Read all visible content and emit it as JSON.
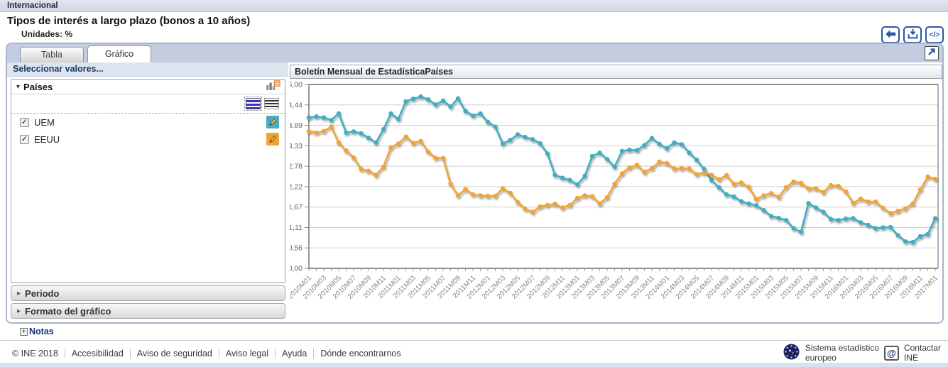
{
  "header": {
    "breadcrumb": "Internacional",
    "title": "Tipos de interés a largo plazo (bonos a 10 años)",
    "units_label": "Unidades: %"
  },
  "toolbar": {
    "code_glyph": "</>"
  },
  "tabs": [
    {
      "label": "Tabla",
      "active": false
    },
    {
      "label": "Gráfico",
      "active": true
    }
  ],
  "sidebar": {
    "header": "Seleccionar valores...",
    "section_paises": {
      "label": "Países",
      "caret": "▾"
    },
    "items": [
      {
        "label": "UEM",
        "checked": true,
        "check_glyph": "✓",
        "color": "#41aec2"
      },
      {
        "label": "EEUU",
        "checked": true,
        "check_glyph": "✓",
        "color": "#f0a437"
      }
    ],
    "collapsed_sections": [
      {
        "label": "Periodo",
        "caret": "▸"
      },
      {
        "label": "Formato del gráfico",
        "caret": "▸"
      }
    ]
  },
  "notes": {
    "plus_glyph": "+",
    "label": "Notas"
  },
  "footer": {
    "links": [
      "© INE 2018",
      "Accesibilidad",
      "Aviso de seguridad",
      "Aviso legal",
      "Ayuda",
      "Dónde encontrarnos"
    ],
    "esl_line1": "Sistema estadístico",
    "esl_line2": "europeo",
    "contact_line1": "Contactar",
    "contact_line2": "INE",
    "at_glyph": "@"
  },
  "chart_data": {
    "type": "line",
    "title": "Boletín Mensual de EstadísticaPaíses",
    "ylim": [
      0,
      5
    ],
    "yticks": [
      "5,00",
      "4,44",
      "3,89",
      "3,33",
      "2,78",
      "2,22",
      "1,67",
      "1,11",
      "0,56",
      "0,00"
    ],
    "x_label_every": 2,
    "grid": true,
    "months": [
      "2010M01",
      "2010M02",
      "2010M03",
      "2010M04",
      "2010M05",
      "2010M06",
      "2010M07",
      "2010M08",
      "2010M09",
      "2010M10",
      "2010M11",
      "2010M12",
      "2011M01",
      "2011M02",
      "2011M03",
      "2011M04",
      "2011M05",
      "2011M06",
      "2011M07",
      "2011M08",
      "2011M09",
      "2011M10",
      "2011M11",
      "2011M12",
      "2012M01",
      "2012M02",
      "2012M03",
      "2012M04",
      "2012M05",
      "2012M06",
      "2012M07",
      "2012M08",
      "2012M09",
      "2012M10",
      "2012M11",
      "2012M12",
      "2013M01",
      "2013M02",
      "2013M03",
      "2013M04",
      "2013M05",
      "2013M06",
      "2013M07",
      "2013M08",
      "2013M09",
      "2013M10",
      "2013M11",
      "2013M12",
      "2014M01",
      "2014M02",
      "2014M03",
      "2014M04",
      "2014M05",
      "2014M06",
      "2014M07",
      "2014M08",
      "2014M09",
      "2014M10",
      "2014M11",
      "2014M12",
      "2015M01",
      "2015M02",
      "2015M03",
      "2015M04",
      "2015M05",
      "2015M06",
      "2015M07",
      "2015M08",
      "2015M09",
      "2015M10",
      "2015M11",
      "2015M12",
      "2016M01",
      "2016M02",
      "2016M03",
      "2016M04",
      "2016M05",
      "2016M06",
      "2016M07",
      "2016M08",
      "2016M09",
      "2016M10",
      "2016M11",
      "2016M12",
      "2017M01"
    ],
    "series": [
      {
        "name": "UEM",
        "color": "#41aec2",
        "values": [
          4.1,
          4.13,
          4.1,
          4.03,
          4.21,
          3.69,
          3.72,
          3.67,
          3.55,
          3.42,
          3.78,
          4.21,
          4.06,
          4.54,
          4.61,
          4.67,
          4.59,
          4.45,
          4.56,
          4.4,
          4.62,
          4.28,
          4.15,
          4.21,
          3.98,
          3.85,
          3.39,
          3.49,
          3.64,
          3.57,
          3.51,
          3.4,
          3.12,
          2.54,
          2.46,
          2.4,
          2.28,
          2.51,
          3.05,
          3.14,
          2.97,
          2.76,
          3.19,
          3.22,
          3.21,
          3.35,
          3.54,
          3.38,
          3.26,
          3.42,
          3.37,
          3.15,
          2.95,
          2.7,
          2.4,
          2.2,
          2.01,
          1.95,
          1.82,
          1.76,
          1.71,
          1.58,
          1.42,
          1.37,
          1.31,
          1.09,
          0.99,
          1.77,
          1.65,
          1.53,
          1.34,
          1.31,
          1.35,
          1.36,
          1.25,
          1.18,
          1.09,
          1.11,
          1.12,
          0.9,
          0.73,
          0.71,
          0.87,
          0.93,
          1.36
        ]
      },
      {
        "name": "EEUU",
        "color": "#f0a437",
        "values": [
          3.73,
          3.69,
          3.73,
          3.85,
          3.42,
          3.2,
          3.01,
          2.7,
          2.65,
          2.54,
          2.76,
          3.29,
          3.39,
          3.58,
          3.41,
          3.46,
          3.17,
          3.0,
          3.0,
          2.3,
          1.98,
          2.15,
          2.01,
          1.98,
          1.97,
          1.97,
          2.17,
          2.05,
          1.8,
          1.62,
          1.53,
          1.68,
          1.72,
          1.75,
          1.65,
          1.72,
          1.91,
          1.98,
          1.96,
          1.76,
          1.93,
          2.3,
          2.58,
          2.74,
          2.81,
          2.62,
          2.72,
          2.9,
          2.86,
          2.71,
          2.72,
          2.71,
          2.56,
          2.6,
          2.54,
          2.42,
          2.53,
          2.3,
          2.33,
          2.21,
          1.88,
          1.98,
          2.04,
          1.94,
          2.2,
          2.36,
          2.32,
          2.17,
          2.17,
          2.07,
          2.26,
          2.24,
          2.09,
          1.78,
          1.89,
          1.81,
          1.81,
          1.64,
          1.5,
          1.56,
          1.63,
          1.76,
          2.14,
          2.49,
          2.43
        ]
      }
    ]
  }
}
